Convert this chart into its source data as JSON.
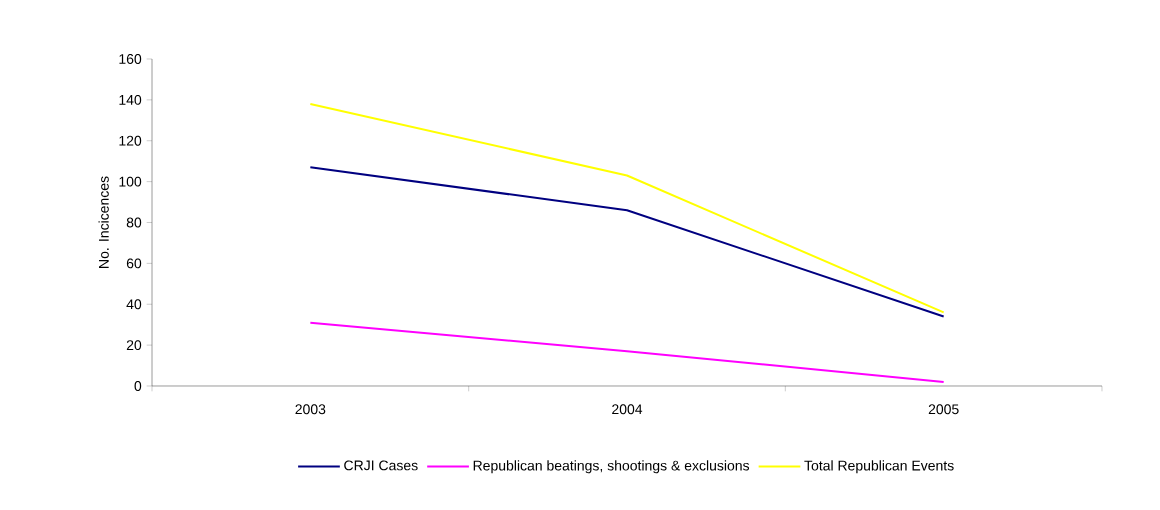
{
  "chart_data": {
    "type": "line",
    "ylabel": "No. Incicences",
    "categories": [
      "2003",
      "2004",
      "2005"
    ],
    "series": [
      {
        "name": "CRJI Cases",
        "color": "#000080",
        "values": [
          107,
          86,
          34
        ]
      },
      {
        "name": "Republican beatings, shootings & exclusions",
        "color": "#ff00ff",
        "values": [
          31,
          17,
          2
        ]
      },
      {
        "name": "Total Republican Events",
        "color": "#ffff00",
        "values": [
          138,
          103,
          36
        ]
      }
    ],
    "ylim": [
      0,
      160
    ],
    "yticks": [
      0,
      20,
      40,
      60,
      80,
      100,
      120,
      140,
      160
    ],
    "legend": "bottom",
    "grid": false,
    "marker": "none",
    "line_style": "solid"
  }
}
